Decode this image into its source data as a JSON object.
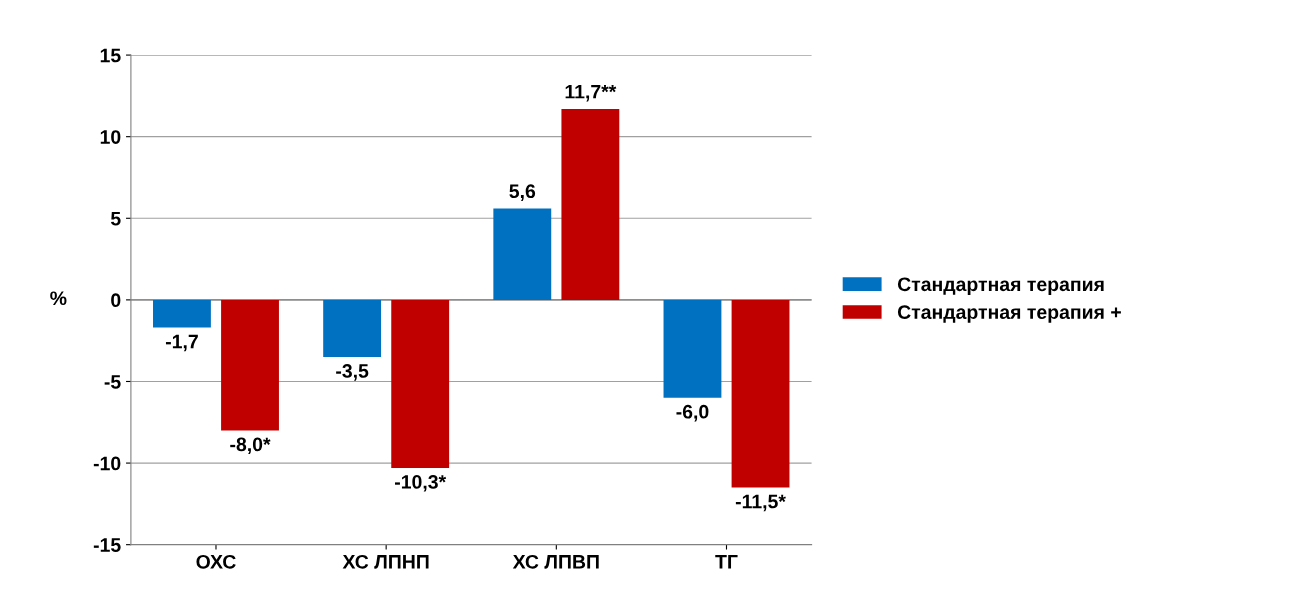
{
  "chart_data": {
    "type": "bar",
    "categories": [
      "ОХС",
      "ХС ЛПНП",
      "ХС ЛПВП",
      "ТГ"
    ],
    "ylabel": "%",
    "ylim": [
      -15,
      15
    ],
    "yticks": [
      -15,
      -10,
      -5,
      0,
      5,
      10,
      15
    ],
    "grid": "y",
    "legend": "right",
    "series": [
      {
        "name": "Стандартная терапия",
        "color": "#0070c0",
        "values": [
          -1.7,
          -3.5,
          5.6,
          -6.0
        ],
        "value_labels": [
          "-1,7",
          "-3,5",
          "5,6",
          "-6,0"
        ]
      },
      {
        "name": "Стандартная терапия +",
        "color": "#c00000",
        "values": [
          -8.0,
          -10.3,
          11.7,
          -11.5
        ],
        "value_labels": [
          "-8,0*",
          "-10,3*",
          "11,7**",
          "-11,5*"
        ]
      }
    ]
  }
}
